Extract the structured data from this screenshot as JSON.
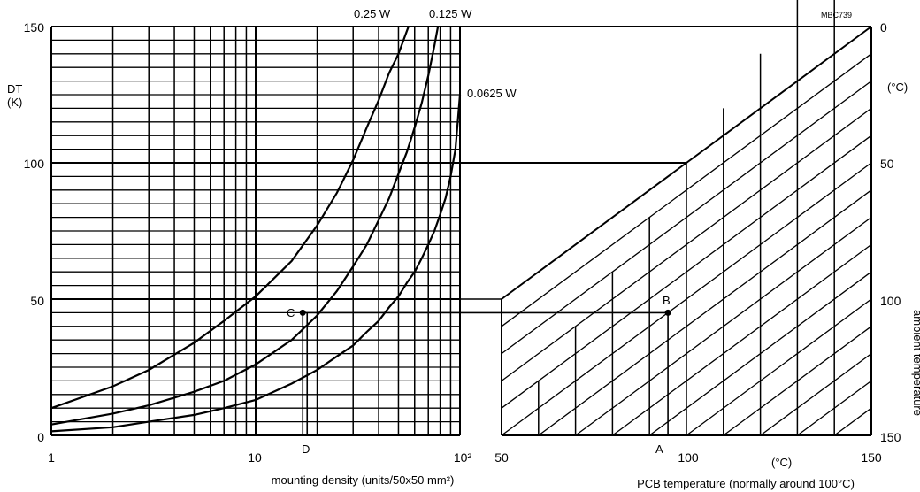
{
  "chart_data": {
    "type": "line",
    "code": "MBC739",
    "left": {
      "x_axis": {
        "scale": "log",
        "range": [
          1,
          100
        ],
        "tick_labels": [
          "1",
          "10",
          "10²"
        ],
        "label": "mounting density (units/50x50 mm²)"
      },
      "y_axis": {
        "range": [
          0,
          150
        ],
        "ticks": [
          0,
          50,
          100,
          150
        ],
        "label_line1": "DT",
        "label_line2": "(K)"
      },
      "series": [
        {
          "name": "0.25 W",
          "x": [
            1,
            2,
            3,
            5,
            7,
            10,
            15,
            20,
            25,
            30,
            35,
            40,
            45,
            50,
            56
          ],
          "y": [
            10,
            18,
            24,
            34,
            42,
            51,
            64,
            77,
            89,
            101,
            113,
            123,
            133,
            140,
            150
          ]
        },
        {
          "name": "0.125 W",
          "x": [
            1,
            2,
            3,
            5,
            7,
            10,
            15,
            20,
            25,
            30,
            35,
            40,
            45,
            50,
            55,
            60,
            65,
            70,
            75,
            78
          ],
          "y": [
            4,
            8,
            11,
            16,
            20,
            26,
            35,
            44,
            53,
            62,
            70,
            79,
            87,
            96,
            104,
            113,
            122,
            132,
            143,
            150
          ]
        },
        {
          "name": "0.0625 W",
          "x": [
            1,
            2,
            3,
            5,
            7,
            10,
            15,
            20,
            25,
            30,
            35,
            40,
            45,
            50,
            55,
            60,
            65,
            70,
            75,
            80,
            85,
            90,
            95,
            100
          ],
          "y": [
            1.5,
            3,
            5,
            7.5,
            10,
            13,
            19,
            24,
            29,
            33,
            38,
            42,
            47,
            51,
            56,
            60,
            65,
            70,
            75,
            81,
            87,
            95,
            105,
            125
          ]
        }
      ],
      "point_C": {
        "label": "C",
        "x": 17,
        "y": 45
      },
      "point_D": {
        "label": "D",
        "x": 17
      }
    },
    "right": {
      "x_axis": {
        "range": [
          50,
          150
        ],
        "tick_labels": [
          "50",
          "100",
          "150"
        ],
        "unit": "(°C)",
        "label": "PCB temperature (normally around 100°C)"
      },
      "y_axis": {
        "range": [
          0,
          150
        ],
        "tick_labels": [
          "0",
          "50",
          "100",
          "150"
        ],
        "unit": "(°C)",
        "label": "ambient temperature"
      },
      "point_B": {
        "label": "B",
        "x": 95,
        "y": 45
      },
      "point_A": {
        "label": "A",
        "x": 95
      }
    }
  }
}
